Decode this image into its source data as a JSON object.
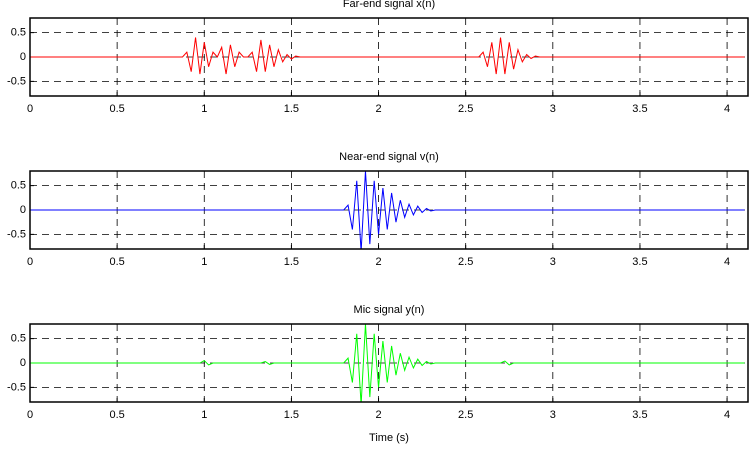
{
  "chart_data": [
    {
      "type": "line",
      "title": "Far-end signal x(n)",
      "color": "#ff0000",
      "grid": true,
      "xlim": [
        0,
        4.12
      ],
      "ylim": [
        -0.8,
        0.8
      ],
      "xticks": [
        0,
        0.5,
        1,
        1.5,
        2,
        2.5,
        3,
        3.5,
        4
      ],
      "yticks": [
        -0.5,
        0,
        0.5
      ],
      "x": [
        0,
        0.025,
        0.05,
        0.075,
        0.1,
        0.125,
        0.15,
        0.175,
        0.2,
        0.225,
        0.25,
        0.275,
        0.3,
        0.325,
        0.35,
        0.375,
        0.4,
        0.425,
        0.45,
        0.475,
        0.5,
        0.525,
        0.55,
        0.575,
        0.6,
        0.625,
        0.65,
        0.675,
        0.7,
        0.725,
        0.75,
        0.775,
        0.8,
        0.825,
        0.85,
        0.875,
        0.9,
        0.925,
        0.95,
        0.975,
        1,
        1.025,
        1.05,
        1.075,
        1.1,
        1.125,
        1.15,
        1.175,
        1.2,
        1.225,
        1.25,
        1.275,
        1.3,
        1.325,
        1.35,
        1.375,
        1.4,
        1.425,
        1.45,
        1.475,
        1.5,
        1.525,
        1.55,
        1.575,
        1.6,
        1.625,
        1.65,
        1.675,
        1.7,
        1.725,
        1.75,
        1.775,
        1.8,
        1.825,
        1.85,
        1.875,
        1.9,
        1.925,
        1.95,
        1.975,
        2,
        2.025,
        2.05,
        2.075,
        2.1,
        2.125,
        2.15,
        2.175,
        2.2,
        2.225,
        2.25,
        2.275,
        2.3,
        2.325,
        2.35,
        2.375,
        2.4,
        2.425,
        2.45,
        2.475,
        2.5,
        2.525,
        2.55,
        2.575,
        2.6,
        2.625,
        2.65,
        2.675,
        2.7,
        2.725,
        2.75,
        2.775,
        2.8,
        2.825,
        2.85,
        2.875,
        2.9,
        2.925,
        2.95,
        2.975,
        3,
        3.025,
        3.05,
        3.075,
        3.1,
        3.125,
        3.15,
        3.175,
        3.2,
        3.225,
        3.25,
        3.275,
        3.3,
        3.325,
        3.35,
        3.375,
        3.4,
        3.425,
        3.45,
        3.475,
        3.5,
        3.525,
        3.55,
        3.575,
        3.6,
        3.625,
        3.65,
        3.675,
        3.7,
        3.725,
        3.75,
        3.775,
        3.8,
        3.825,
        3.85,
        3.875,
        3.9,
        3.925,
        3.95,
        3.975,
        4,
        4.025,
        4.05,
        4.075,
        4.1
      ],
      "values": [
        0,
        0,
        0,
        0,
        0,
        0,
        0,
        0,
        0,
        0,
        0,
        0,
        0,
        0,
        0,
        0,
        0,
        0,
        0,
        0,
        0,
        0,
        0,
        0,
        0,
        0,
        0,
        0,
        0,
        0,
        0,
        0,
        0,
        0,
        0,
        0,
        0.1,
        -0.3,
        0.4,
        -0.35,
        0.3,
        -0.2,
        0.1,
        0,
        0.2,
        -0.35,
        0.25,
        -0.2,
        0.1,
        0,
        0,
        0.1,
        -0.3,
        0.35,
        -0.3,
        0.25,
        -0.2,
        0.15,
        -0.1,
        0.05,
        -0.04,
        0.02,
        0,
        0,
        0,
        0,
        0,
        0,
        0,
        0,
        0,
        0,
        0,
        0,
        0,
        0,
        0,
        0,
        0,
        0,
        0,
        0,
        0,
        0,
        0,
        0,
        0,
        0,
        0,
        0,
        0,
        0,
        0,
        0,
        0,
        0,
        0,
        0,
        0,
        0,
        0,
        0,
        0,
        0,
        0.1,
        -0.2,
        0.3,
        -0.35,
        0.4,
        -0.35,
        0.3,
        -0.25,
        0.15,
        -0.1,
        0.05,
        -0.03,
        0.02,
        0,
        0,
        0,
        0,
        0,
        0,
        0,
        0,
        0,
        0,
        0,
        0,
        0,
        0,
        0,
        0,
        0,
        0,
        0,
        0,
        0,
        0,
        0,
        0,
        0,
        0,
        0,
        0,
        0,
        0,
        0,
        0,
        0,
        0,
        0,
        0,
        0,
        0,
        0,
        0,
        0,
        0,
        0,
        0,
        0,
        0,
        0,
        0
      ]
    },
    {
      "type": "line",
      "title": "Near-end signal v(n)",
      "color": "#0000ff",
      "grid": true,
      "xlim": [
        0,
        4.12
      ],
      "ylim": [
        -0.8,
        0.8
      ],
      "xticks": [
        0,
        0.5,
        1,
        1.5,
        2,
        2.5,
        3,
        3.5,
        4
      ],
      "yticks": [
        -0.5,
        0,
        0.5
      ],
      "x": [
        0,
        0.025,
        0.05,
        0.075,
        0.1,
        0.125,
        0.15,
        0.175,
        0.2,
        0.225,
        0.25,
        0.275,
        0.3,
        0.325,
        0.35,
        0.375,
        0.4,
        0.425,
        0.45,
        0.475,
        0.5,
        0.525,
        0.55,
        0.575,
        0.6,
        0.625,
        0.65,
        0.675,
        0.7,
        0.725,
        0.75,
        0.775,
        0.8,
        0.825,
        0.85,
        0.875,
        0.9,
        0.925,
        0.95,
        0.975,
        1,
        1.025,
        1.05,
        1.075,
        1.1,
        1.125,
        1.15,
        1.175,
        1.2,
        1.225,
        1.25,
        1.275,
        1.3,
        1.325,
        1.35,
        1.375,
        1.4,
        1.425,
        1.45,
        1.475,
        1.5,
        1.525,
        1.55,
        1.575,
        1.6,
        1.625,
        1.65,
        1.675,
        1.7,
        1.725,
        1.75,
        1.775,
        1.8,
        1.825,
        1.85,
        1.875,
        1.9,
        1.925,
        1.95,
        1.975,
        2,
        2.025,
        2.05,
        2.075,
        2.1,
        2.125,
        2.15,
        2.175,
        2.2,
        2.225,
        2.25,
        2.275,
        2.3,
        2.325,
        2.35,
        2.375,
        2.4,
        2.425,
        2.45,
        2.475,
        2.5,
        2.525,
        2.55,
        2.575,
        2.6,
        2.625,
        2.65,
        2.675,
        2.7,
        2.725,
        2.75,
        2.775,
        2.8,
        2.825,
        2.85,
        2.875,
        2.9,
        2.925,
        2.95,
        2.975,
        3,
        3.025,
        3.05,
        3.075,
        3.1,
        3.125,
        3.15,
        3.175,
        3.2,
        3.225,
        3.25,
        3.275,
        3.3,
        3.325,
        3.35,
        3.375,
        3.4,
        3.425,
        3.45,
        3.475,
        3.5,
        3.525,
        3.55,
        3.575,
        3.6,
        3.625,
        3.65,
        3.675,
        3.7,
        3.725,
        3.75,
        3.775,
        3.8,
        3.825,
        3.85,
        3.875,
        3.9,
        3.925,
        3.95,
        3.975,
        4,
        4.025,
        4.05,
        4.075,
        4.1
      ],
      "values": [
        0,
        0,
        0,
        0,
        0,
        0,
        0,
        0,
        0,
        0,
        0,
        0,
        0,
        0,
        0,
        0,
        0,
        0,
        0,
        0,
        0,
        0,
        0,
        0,
        0,
        0,
        0,
        0,
        0,
        0,
        0,
        0,
        0,
        0,
        0,
        0,
        0,
        0,
        0,
        0,
        0,
        0,
        0,
        0,
        0,
        0,
        0,
        0,
        0,
        0,
        0,
        0,
        0,
        0,
        0,
        0,
        0,
        0,
        0,
        0,
        0,
        0,
        0,
        0,
        0,
        0,
        0,
        0,
        0,
        0,
        0,
        0,
        0,
        0.1,
        -0.4,
        0.6,
        -0.85,
        0.8,
        -0.7,
        0.6,
        -0.5,
        0.45,
        -0.4,
        0.35,
        -0.25,
        0.2,
        -0.15,
        0.12,
        -0.1,
        0.08,
        -0.05,
        0.03,
        -0.02,
        0,
        0,
        0,
        0,
        0,
        0,
        0,
        0,
        0,
        0,
        0,
        0,
        0,
        0,
        0,
        0,
        0,
        0,
        0,
        0,
        0,
        0,
        0,
        0,
        0,
        0,
        0,
        0,
        0,
        0,
        0,
        0,
        0,
        0,
        0,
        0,
        0,
        0,
        0,
        0,
        0,
        0,
        0,
        0,
        0,
        0,
        0,
        0,
        0,
        0,
        0,
        0,
        0,
        0,
        0,
        0,
        0,
        0,
        0,
        0,
        0,
        0,
        0,
        0,
        0,
        0,
        0,
        0,
        0,
        0,
        0,
        0
      ]
    },
    {
      "type": "line",
      "title": "Mic signal y(n)",
      "xlabel": "Time (s)",
      "color": "#00ff00",
      "grid": true,
      "xlim": [
        0,
        4.12
      ],
      "ylim": [
        -0.8,
        0.8
      ],
      "xticks": [
        0,
        0.5,
        1,
        1.5,
        2,
        2.5,
        3,
        3.5,
        4
      ],
      "yticks": [
        -0.5,
        0,
        0.5
      ],
      "x": [
        0,
        0.025,
        0.05,
        0.075,
        0.1,
        0.125,
        0.15,
        0.175,
        0.2,
        0.225,
        0.25,
        0.275,
        0.3,
        0.325,
        0.35,
        0.375,
        0.4,
        0.425,
        0.45,
        0.475,
        0.5,
        0.525,
        0.55,
        0.575,
        0.6,
        0.625,
        0.65,
        0.675,
        0.7,
        0.725,
        0.75,
        0.775,
        0.8,
        0.825,
        0.85,
        0.875,
        0.9,
        0.925,
        0.95,
        0.975,
        1,
        1.025,
        1.05,
        1.075,
        1.1,
        1.125,
        1.15,
        1.175,
        1.2,
        1.225,
        1.25,
        1.275,
        1.3,
        1.325,
        1.35,
        1.375,
        1.4,
        1.425,
        1.45,
        1.475,
        1.5,
        1.525,
        1.55,
        1.575,
        1.6,
        1.625,
        1.65,
        1.675,
        1.7,
        1.725,
        1.75,
        1.775,
        1.8,
        1.825,
        1.85,
        1.875,
        1.9,
        1.925,
        1.95,
        1.975,
        2,
        2.025,
        2.05,
        2.075,
        2.1,
        2.125,
        2.15,
        2.175,
        2.2,
        2.225,
        2.25,
        2.275,
        2.3,
        2.325,
        2.35,
        2.375,
        2.4,
        2.425,
        2.45,
        2.475,
        2.5,
        2.525,
        2.55,
        2.575,
        2.6,
        2.625,
        2.65,
        2.675,
        2.7,
        2.725,
        2.75,
        2.775,
        2.8,
        2.825,
        2.85,
        2.875,
        2.9,
        2.925,
        2.95,
        2.975,
        3,
        3.025,
        3.05,
        3.075,
        3.1,
        3.125,
        3.15,
        3.175,
        3.2,
        3.225,
        3.25,
        3.275,
        3.3,
        3.325,
        3.35,
        3.375,
        3.4,
        3.425,
        3.45,
        3.475,
        3.5,
        3.525,
        3.55,
        3.575,
        3.6,
        3.625,
        3.65,
        3.675,
        3.7,
        3.725,
        3.75,
        3.775,
        3.8,
        3.825,
        3.85,
        3.875,
        3.9,
        3.925,
        3.95,
        3.975,
        4,
        4.025,
        4.05,
        4.075,
        4.1
      ],
      "values": [
        0,
        0,
        0,
        0,
        0,
        0,
        0,
        0,
        0,
        0,
        0,
        0,
        0,
        0,
        0,
        0,
        0,
        0,
        0,
        0,
        0,
        0,
        0,
        0,
        0,
        0,
        0,
        0,
        0,
        0,
        0,
        0,
        0,
        0,
        0,
        0,
        0,
        0,
        0,
        0,
        0.05,
        -0.04,
        0,
        0,
        0,
        0,
        0,
        0,
        0,
        0,
        0,
        0,
        0,
        0,
        0.03,
        -0.03,
        0,
        0,
        0,
        0,
        0,
        0,
        0,
        0,
        0,
        0,
        0,
        0,
        0,
        0,
        0,
        0,
        0,
        0.1,
        -0.4,
        0.6,
        -0.85,
        0.8,
        -0.7,
        0.6,
        -0.5,
        0.45,
        -0.4,
        0.35,
        -0.25,
        0.2,
        -0.15,
        0.12,
        -0.1,
        0.08,
        -0.05,
        0.03,
        -0.02,
        0,
        0,
        0,
        0,
        0,
        0,
        0,
        0,
        0,
        0,
        0,
        0,
        0,
        0,
        0,
        0,
        0.04,
        -0.04,
        0,
        0,
        0,
        0,
        0,
        0,
        0,
        0,
        0,
        0,
        0,
        0,
        0,
        0,
        0,
        0,
        0,
        0,
        0,
        0,
        0,
        0,
        0,
        0,
        0,
        0,
        0,
        0,
        0,
        0,
        0,
        0,
        0,
        0,
        0,
        0,
        0,
        0,
        0,
        0,
        0,
        0,
        0,
        0,
        0,
        0,
        0,
        0,
        0,
        0,
        0,
        0,
        0,
        0
      ]
    }
  ]
}
